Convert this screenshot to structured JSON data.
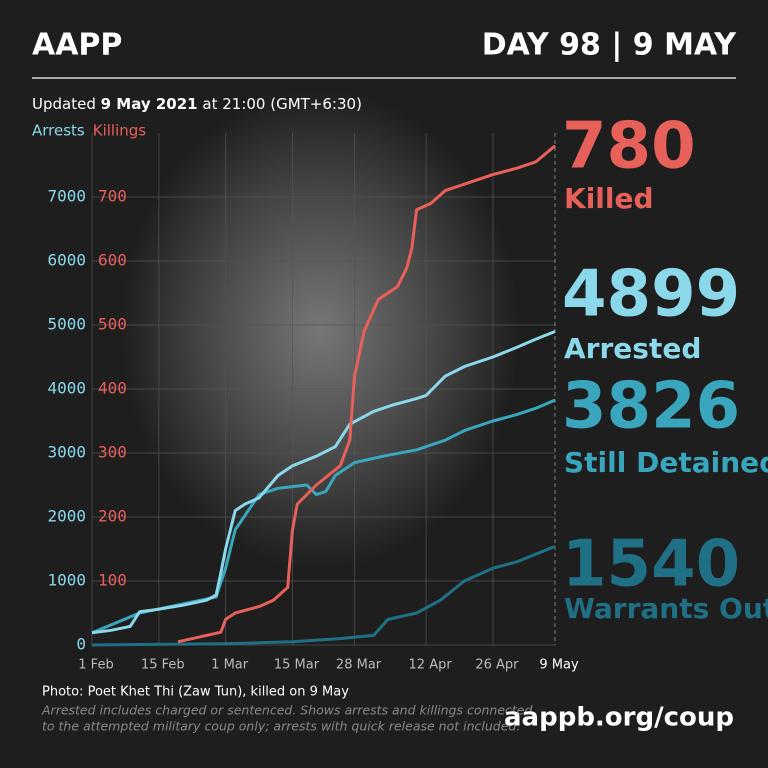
{
  "header": {
    "brand": "AAPP",
    "day": "DAY 98 | 9 MAY"
  },
  "updated": [
    "Updated ",
    "9 May 2021",
    " at 21:00 (GMT+6:30)"
  ],
  "chart_data": {
    "type": "line",
    "xlim": [
      "2021-02-01",
      "2021-05-09"
    ],
    "xticks": [
      {
        "value": "2021-02-01",
        "label": "1 Feb"
      },
      {
        "value": "2021-02-15",
        "label": "15 Feb"
      },
      {
        "value": "2021-03-01",
        "label": "1 Mar"
      },
      {
        "value": "2021-03-15",
        "label": "15 Mar"
      },
      {
        "value": "2021-03-28",
        "label": "28 Mar"
      },
      {
        "value": "2021-04-12",
        "label": "12 Apr"
      },
      {
        "value": "2021-04-26",
        "label": "26 Apr"
      },
      {
        "value": "2021-05-09",
        "label": "9 May"
      }
    ],
    "ylim": [
      0,
      8000
    ],
    "yticks": [
      0,
      1000,
      2000,
      3000,
      4000,
      5000,
      6000,
      7000
    ],
    "y2lim": [
      0,
      800
    ],
    "y2ticks": [
      0,
      100,
      200,
      300,
      400,
      500,
      600,
      700
    ],
    "grid": true,
    "series": [
      {
        "name": "Arrests",
        "callout": "Arrested",
        "color": "#8ad8ea",
        "x": [
          "2021-02-01",
          "2021-02-05",
          "2021-02-09",
          "2021-02-11",
          "2021-02-15",
          "2021-02-20",
          "2021-02-25",
          "2021-02-27",
          "2021-02-28",
          "2021-03-01",
          "2021-03-03",
          "2021-03-05",
          "2021-03-08",
          "2021-03-12",
          "2021-03-15",
          "2021-03-20",
          "2021-03-24",
          "2021-03-27",
          "2021-04-01",
          "2021-04-05",
          "2021-04-10",
          "2021-04-12",
          "2021-04-16",
          "2021-04-20",
          "2021-04-26",
          "2021-05-01",
          "2021-05-05",
          "2021-05-09"
        ],
        "values": [
          190,
          230,
          290,
          520,
          560,
          620,
          700,
          780,
          1130,
          1500,
          2100,
          2200,
          2300,
          2650,
          2800,
          2950,
          3100,
          3450,
          3650,
          3750,
          3850,
          3900,
          4200,
          4350,
          4500,
          4650,
          4780,
          4899
        ]
      },
      {
        "name": "Killings",
        "callout": "Killed",
        "color": "#e8605a",
        "axis": "y2",
        "x": [
          "2021-02-19",
          "2021-02-28",
          "2021-03-01",
          "2021-03-03",
          "2021-03-08",
          "2021-03-11",
          "2021-03-14",
          "2021-03-15",
          "2021-03-16",
          "2021-03-20",
          "2021-03-25",
          "2021-03-27",
          "2021-03-28",
          "2021-03-30",
          "2021-04-02",
          "2021-04-06",
          "2021-04-08",
          "2021-04-09",
          "2021-04-10",
          "2021-04-13",
          "2021-04-16",
          "2021-04-20",
          "2021-04-26",
          "2021-05-01",
          "2021-05-05",
          "2021-05-09"
        ],
        "values": [
          5,
          20,
          40,
          50,
          60,
          70,
          90,
          180,
          220,
          250,
          280,
          320,
          420,
          490,
          540,
          560,
          590,
          620,
          680,
          690,
          710,
          720,
          735,
          745,
          755,
          780
        ]
      },
      {
        "callout": "Still Detained",
        "color": "#3aa6bd",
        "x": [
          "2021-02-01",
          "2021-02-11",
          "2021-02-27",
          "2021-03-01",
          "2021-03-03",
          "2021-03-08",
          "2021-03-12",
          "2021-03-18",
          "2021-03-20",
          "2021-03-22",
          "2021-03-24",
          "2021-03-28",
          "2021-04-03",
          "2021-04-10",
          "2021-04-16",
          "2021-04-20",
          "2021-04-26",
          "2021-05-01",
          "2021-05-05",
          "2021-05-09"
        ],
        "values": [
          190,
          500,
          750,
          1200,
          1800,
          2350,
          2450,
          2500,
          2350,
          2400,
          2650,
          2850,
          2950,
          3050,
          3200,
          3350,
          3500,
          3600,
          3700,
          3826
        ]
      },
      {
        "callout": "Warrants Out",
        "color": "#1f6f85",
        "x": [
          "2021-02-01",
          "2021-03-01",
          "2021-03-15",
          "2021-03-25",
          "2021-04-01",
          "2021-04-04",
          "2021-04-10",
          "2021-04-15",
          "2021-04-20",
          "2021-04-26",
          "2021-05-01",
          "2021-05-05",
          "2021-05-09"
        ],
        "values": [
          0,
          20,
          50,
          100,
          150,
          400,
          500,
          700,
          1000,
          1200,
          1300,
          1420,
          1540
        ]
      }
    ]
  },
  "footer": {
    "photo": "Photo: Poet Khet Thi (Zaw Tun), killed on 9 May",
    "note": [
      "Arrested includes charged or sentenced. Shows arrests and killings connected",
      "to the attempted military coup only; arrests with quick release not included."
    ],
    "url": "aappb.org/coup"
  }
}
